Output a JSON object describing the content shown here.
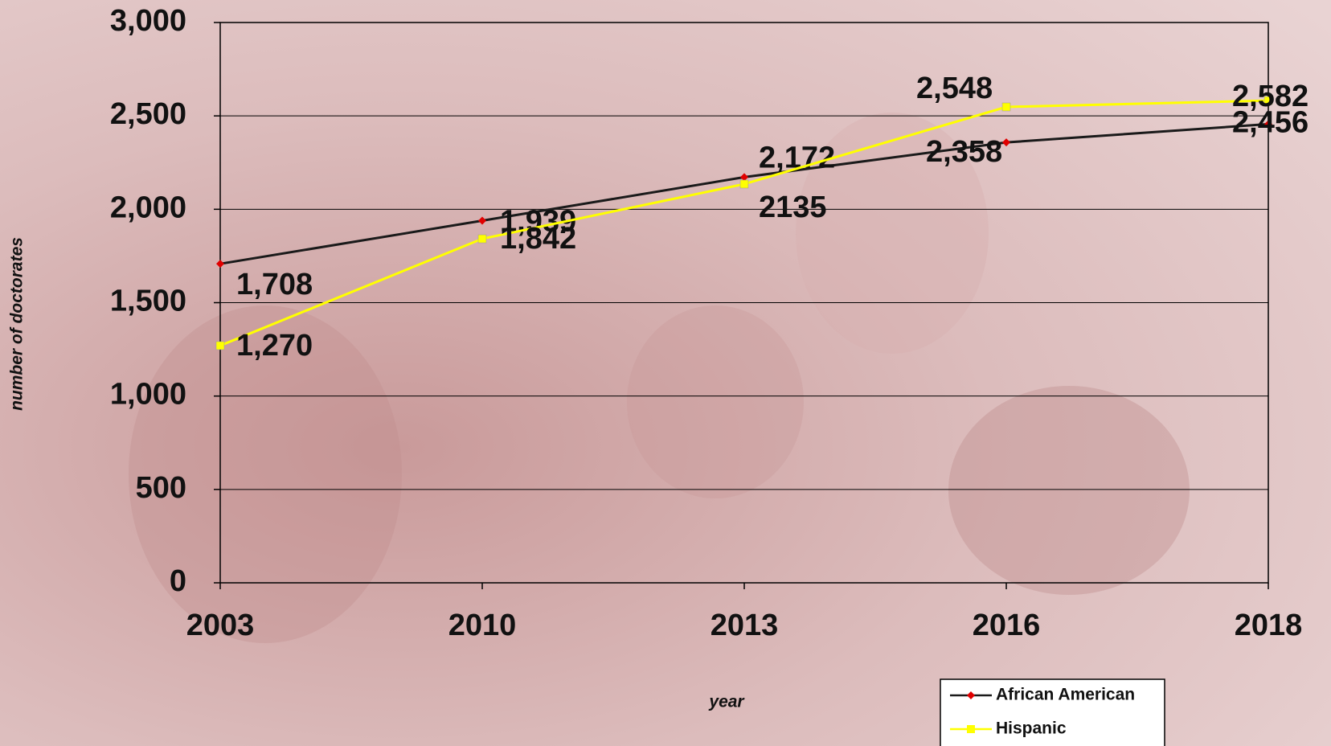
{
  "chart_data": {
    "type": "line",
    "categories": [
      "2003",
      "2010",
      "2013",
      "2016",
      "2018"
    ],
    "series": [
      {
        "name": "African American",
        "color": "#1a1a1a",
        "marker_color": "#e00000",
        "values": [
          1708,
          1939,
          2172,
          2358,
          2456
        ],
        "value_labels": [
          "1,708",
          "1,939",
          "2,172",
          "2,358",
          "2,456"
        ]
      },
      {
        "name": "Hispanic",
        "color": "#ffff00",
        "marker_color": "#ffff00",
        "values": [
          1270,
          1842,
          2135,
          2548,
          2582
        ],
        "value_labels": [
          "1,270",
          "1,842",
          "2135",
          "2,548",
          "2,582"
        ]
      }
    ],
    "ylim": [
      0,
      3000
    ],
    "yticks": [
      0,
      500,
      {
        "value": 1000,
        "label": "1,000"
      },
      {
        "value": 1500,
        "label": "1,500"
      },
      {
        "value": 2000,
        "label": "2,000"
      },
      {
        "value": 2500,
        "label": "2,500"
      },
      {
        "value": 3000,
        "label": "3,000"
      }
    ],
    "y_label": "number of doctorates",
    "x_label": "year",
    "grid": true
  }
}
